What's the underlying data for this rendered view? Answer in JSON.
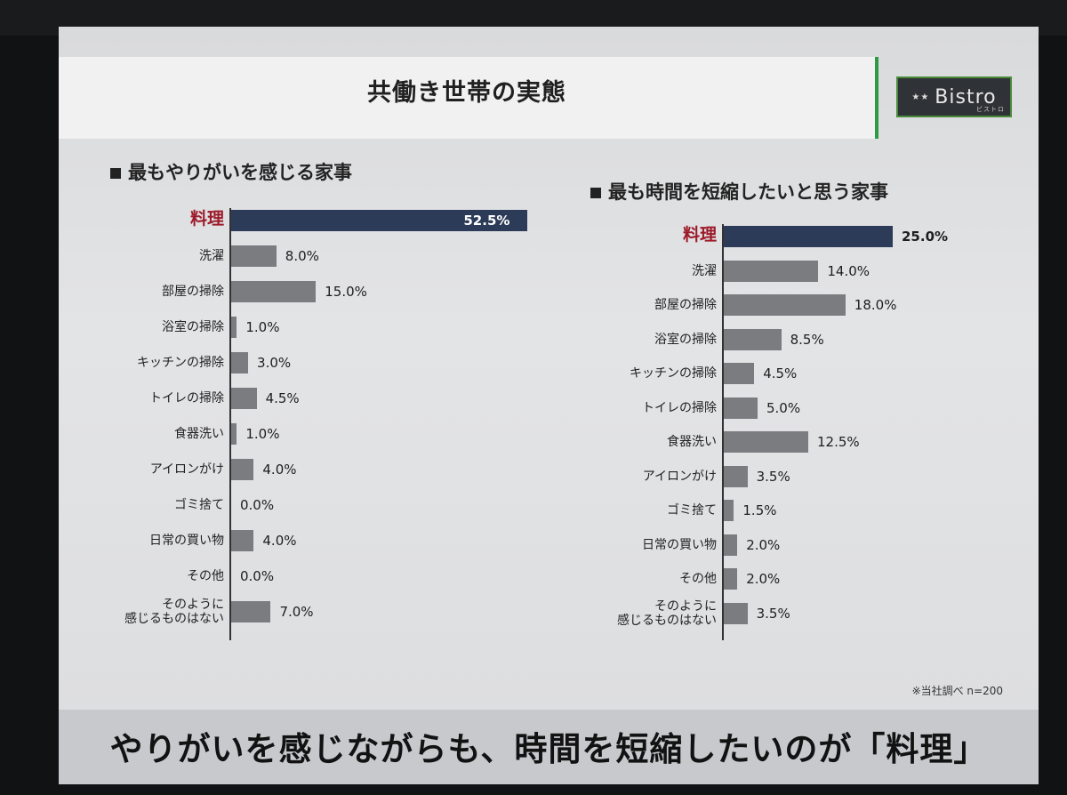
{
  "slide_title": "共働き世帯の実態",
  "logo": {
    "text": "Bistro",
    "subtext": "ビストロ",
    "icon": "star-icon"
  },
  "note": "※当社調べ n=200",
  "bottom_message": "やりがいを感じながらも、時間を短縮したいのが「料理」",
  "colors": {
    "highlight_bar": "#2b3b58",
    "bar": "#7b7c7f",
    "highlight_label": "#9c1a2a"
  },
  "chart_data": [
    {
      "type": "bar",
      "orientation": "horizontal",
      "title": "最もやりがいを感じる家事",
      "categories": [
        "料理",
        "洗濯",
        "部屋の掃除",
        "浴室の掃除",
        "キッチンの掃除",
        "トイレの掃除",
        "食器洗い",
        "アイロンがけ",
        "ゴミ捨て",
        "日常の買い物",
        "その他",
        "そのように\n感じるものはない"
      ],
      "values": [
        52.5,
        8.0,
        15.0,
        1.0,
        3.0,
        4.5,
        1.0,
        4.0,
        0.0,
        4.0,
        0.0,
        7.0
      ],
      "value_labels": [
        "52.5%",
        "8.0%",
        "15.0%",
        "1.0%",
        "3.0%",
        "4.5%",
        "1.0%",
        "4.0%",
        "0.0%",
        "4.0%",
        "0.0%",
        "7.0%"
      ],
      "highlight_index": 0
    },
    {
      "type": "bar",
      "orientation": "horizontal",
      "title": "最も時間を短縮したいと思う家事",
      "categories": [
        "料理",
        "洗濯",
        "部屋の掃除",
        "浴室の掃除",
        "キッチンの掃除",
        "トイレの掃除",
        "食器洗い",
        "アイロンがけ",
        "ゴミ捨て",
        "日常の買い物",
        "その他",
        "そのように\n感じるものはない"
      ],
      "values": [
        25.0,
        14.0,
        18.0,
        8.5,
        4.5,
        5.0,
        12.5,
        3.5,
        1.5,
        2.0,
        2.0,
        3.5
      ],
      "value_labels": [
        "25.0%",
        "14.0%",
        "18.0%",
        "8.5%",
        "4.5%",
        "5.0%",
        "12.5%",
        "3.5%",
        "1.5%",
        "2.0%",
        "2.0%",
        "3.5%"
      ],
      "highlight_index": 0
    }
  ]
}
